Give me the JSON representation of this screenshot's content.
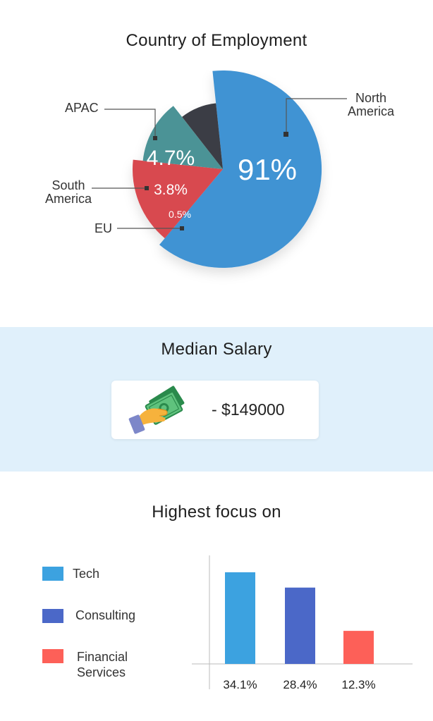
{
  "chart_data": [
    {
      "type": "pie",
      "title": "Country of Employment",
      "slices": [
        {
          "label": "North America",
          "value": 91,
          "display": "91%",
          "color": "#4193d3"
        },
        {
          "label": "APAC",
          "value": 4.7,
          "display": "4.7%",
          "color": "#d84850"
        },
        {
          "label": "South America",
          "value": 3.8,
          "display": "3.8%",
          "color": "#4b9396"
        },
        {
          "label": "EU",
          "value": 0.5,
          "display": "0.5%",
          "color": "#3a3e44"
        }
      ]
    },
    {
      "type": "bar",
      "title": "Highest focus on",
      "categories": [
        "Tech",
        "Consulting",
        "Financial Services"
      ],
      "values": [
        34.1,
        28.4,
        12.3
      ],
      "value_labels": [
        "34.1%",
        "28.4%",
        "12.3%"
      ],
      "colors": [
        "#3ca2e0",
        "#4b68c8",
        "#fd6058"
      ],
      "legend": "left"
    }
  ],
  "pie_labels": {
    "north_america": [
      "North",
      "America"
    ],
    "apac": "APAC",
    "south_america": [
      "South",
      "America"
    ],
    "eu": "EU"
  },
  "salary": {
    "title": "Median Salary",
    "value": "- $149000",
    "icon": "hand-holding-cash-icon"
  },
  "legend": {
    "tech": "Tech",
    "consulting": "Consulting",
    "financial": [
      "Financial",
      "Services"
    ]
  }
}
